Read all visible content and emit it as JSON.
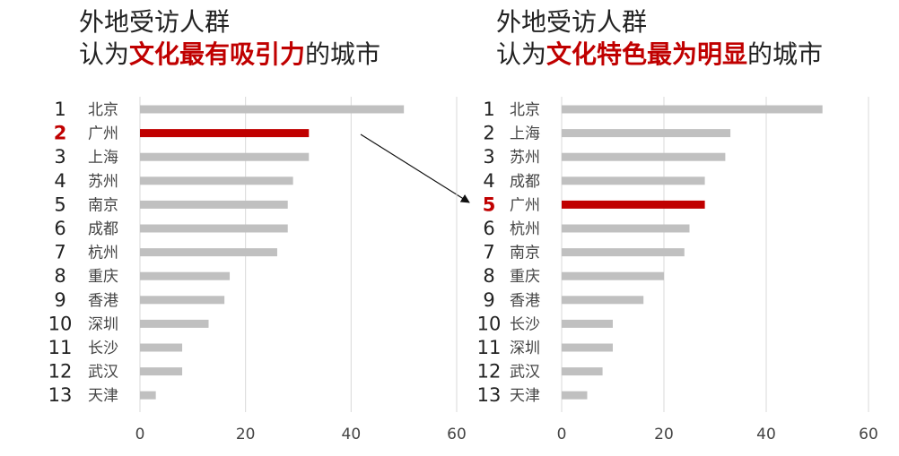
{
  "colors": {
    "bar": "#c0c0c0",
    "highlight": "#c00000",
    "grid": "#d9d9d9",
    "text": "#222222",
    "label": "#444444"
  },
  "chart_data": [
    {
      "type": "bar",
      "orientation": "horizontal",
      "title": {
        "line1": "外地受访人群",
        "line2_prefix": "认为",
        "line2_highlight": "文化最有吸引力",
        "line2_suffix": "的城市"
      },
      "ranks": [
        "1",
        "2",
        "3",
        "4",
        "5",
        "6",
        "7",
        "8",
        "9",
        "10",
        "11",
        "12",
        "13"
      ],
      "categories": [
        "北京",
        "广州",
        "上海",
        "苏州",
        "南京",
        "成都",
        "杭州",
        "重庆",
        "香港",
        "深圳",
        "长沙",
        "武汉",
        "天津"
      ],
      "values": [
        50,
        32,
        32,
        29,
        28,
        28,
        26,
        17,
        16,
        13,
        8,
        8,
        3
      ],
      "highlight_index": 1,
      "xlim": [
        0,
        60
      ],
      "xticks": [
        "0",
        "20",
        "40",
        "60"
      ],
      "grid": true
    },
    {
      "type": "bar",
      "orientation": "horizontal",
      "title": {
        "line1": "外地受访人群",
        "line2_prefix": "认为",
        "line2_highlight": "文化特色最为明显",
        "line2_suffix": "的城市"
      },
      "ranks": [
        "1",
        "2",
        "3",
        "4",
        "5",
        "6",
        "7",
        "8",
        "9",
        "10",
        "11",
        "12",
        "13"
      ],
      "categories": [
        "北京",
        "上海",
        "苏州",
        "成都",
        "广州",
        "杭州",
        "南京",
        "重庆",
        "香港",
        "长沙",
        "深圳",
        "武汉",
        "天津"
      ],
      "values": [
        51,
        33,
        32,
        28,
        28,
        25,
        24,
        20,
        16,
        10,
        10,
        8,
        5
      ],
      "highlight_index": 4,
      "xlim": [
        0,
        60
      ],
      "xticks": [
        "0",
        "20",
        "40",
        "60"
      ],
      "grid": true
    }
  ]
}
